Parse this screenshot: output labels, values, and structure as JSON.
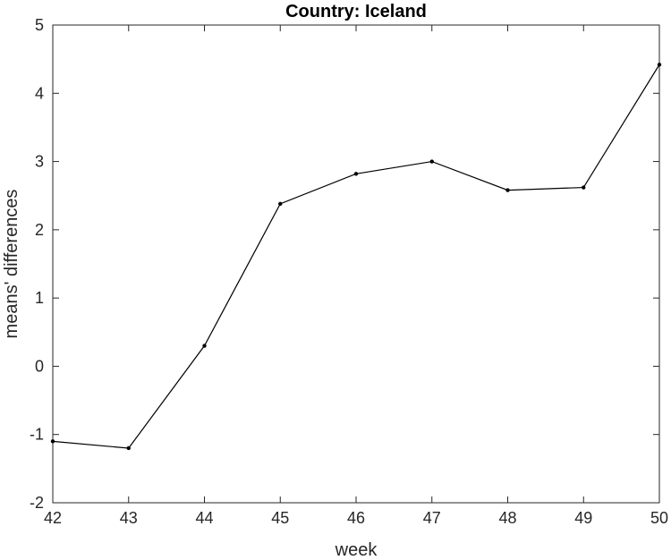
{
  "chart_data": {
    "type": "line",
    "title": "Country: Iceland",
    "xlabel": "week",
    "ylabel": "means' differences",
    "xlim": [
      42,
      50
    ],
    "ylim": [
      -2,
      5
    ],
    "xticks": [
      "42",
      "43",
      "44",
      "45",
      "46",
      "47",
      "48",
      "49",
      "50"
    ],
    "yticks": [
      "-2",
      "-1",
      "0",
      "1",
      "2",
      "3",
      "4",
      "5"
    ],
    "grid": false,
    "line_color": "#000000",
    "x": [
      42,
      43,
      44,
      45,
      46,
      47,
      48,
      49,
      50
    ],
    "y": [
      -1.1,
      -1.2,
      0.3,
      2.38,
      2.82,
      3.0,
      2.58,
      2.62,
      4.42
    ]
  }
}
